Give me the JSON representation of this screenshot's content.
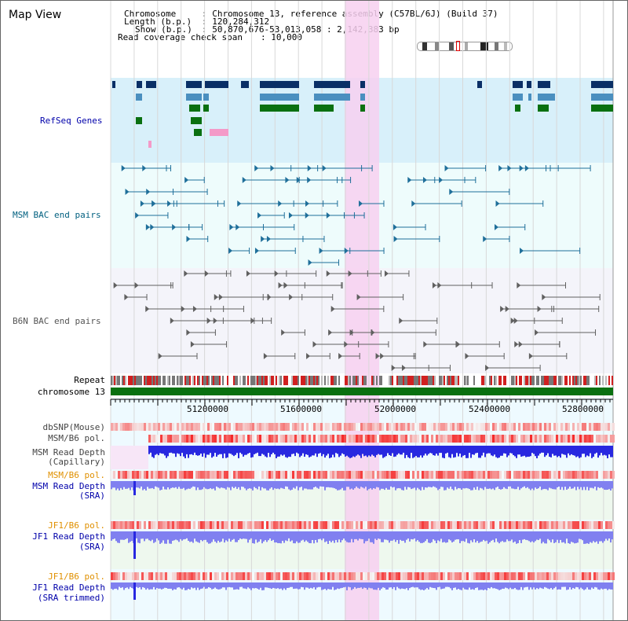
{
  "title": "Map View",
  "info": {
    "chromosome_label": "Chromosome",
    "chromosome_value": ": Chromosome 13, reference assembly (C57BL/6J) (Build 37)",
    "length_label": "Length (b.p.)",
    "length_value": ": 120,284,312",
    "show_label": "Show (b.p.)",
    "show_value": ": 50,870,676-53,013,058 : 2,142,383 bp",
    "coverage_label": "Read coverage check span",
    "coverage_value": ": 10,000"
  },
  "tracks": {
    "refseq": "RefSeq Genes",
    "msm_bac": "MSM BAC end pairs",
    "b6n_bac": "B6N BAC end pairs",
    "repeat": "Repeat",
    "chromosome": "chromosome 13",
    "dbsnp": "dbSNP(Mouse)",
    "msm_b6_pol_1": "MSM/B6 pol.",
    "msm_depth_cap_1": "MSM Read Depth",
    "msm_depth_cap_2": "(Capillary)",
    "msm_b6_pol_2": "MSM/B6 pol.",
    "msm_depth_sra_1": "MSM Read Depth",
    "msm_depth_sra_2": "(SRA)",
    "jf1_b6_pol_1": "JF1/B6 pol.",
    "jf1_depth_sra_1": "JF1 Read Depth",
    "jf1_depth_sra_2": "(SRA)",
    "jf1_b6_pol_2": "JF1/B6 pol.",
    "jf1_depth_trim_1": "JF1 Read Depth",
    "jf1_depth_trim_2": "(SRA trimmed)"
  },
  "scale_ticks": [
    "51200000",
    "51600000",
    "52000000",
    "52400000",
    "52800000"
  ],
  "colors": {
    "refseq_bg": "#d8f0fa",
    "bac_bg": "#eefcfc",
    "highlight": "#f7d0f0",
    "gene_dark": "#0a2f66",
    "gene_mid": "#4a8fbf",
    "gene_green": "#0a7010",
    "chromosome_bar": "#0a7010",
    "depth_blue": "#2828e0",
    "depth_light": "#8080f0"
  }
}
